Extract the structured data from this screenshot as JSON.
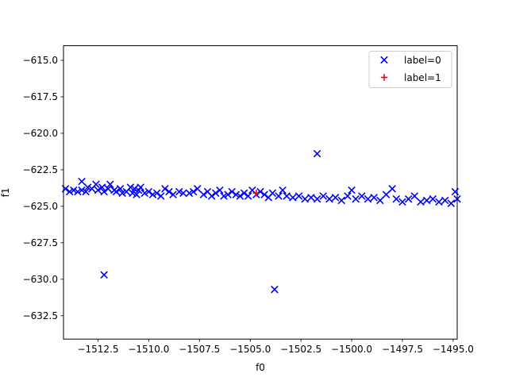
{
  "chart_data": {
    "type": "scatter",
    "xlabel": "f0",
    "ylabel": "f1",
    "xlim": [
      -1514.2,
      -1494.8
    ],
    "ylim": [
      -634.1,
      -614.0
    ],
    "xticks": [
      -1512.5,
      -1510.0,
      -1507.5,
      -1505.0,
      -1502.5,
      -1500.0,
      -1497.5,
      -1495.0
    ],
    "xtick_labels": [
      "−1512.5",
      "−1510.0",
      "−1507.5",
      "−1505.0",
      "−1502.5",
      "−1500.0",
      "−1497.5",
      "−1495.0"
    ],
    "yticks": [
      -615.0,
      -617.5,
      -620.0,
      -622.5,
      -625.0,
      -627.5,
      -630.0,
      -632.5
    ],
    "ytick_labels": [
      "−615.0",
      "−617.5",
      "−620.0",
      "−622.5",
      "−625.0",
      "−627.5",
      "−630.0",
      "−632.5"
    ],
    "grid": false,
    "legend_position": "top-right",
    "series": [
      {
        "name": "label=0",
        "marker": "x",
        "color": "#0000ff",
        "points": [
          [
            -1514.1,
            -623.8
          ],
          [
            -1513.9,
            -624.0
          ],
          [
            -1513.7,
            -623.9
          ],
          [
            -1513.5,
            -624.0
          ],
          [
            -1513.3,
            -623.9
          ],
          [
            -1513.1,
            -624.0
          ],
          [
            -1513.3,
            -623.3
          ],
          [
            -1513.0,
            -623.7
          ],
          [
            -1512.8,
            -623.8
          ],
          [
            -1512.6,
            -623.5
          ],
          [
            -1512.5,
            -623.9
          ],
          [
            -1512.3,
            -623.7
          ],
          [
            -1512.2,
            -624.0
          ],
          [
            -1512.0,
            -623.8
          ],
          [
            -1511.9,
            -623.5
          ],
          [
            -1511.7,
            -623.9
          ],
          [
            -1511.6,
            -624.0
          ],
          [
            -1511.4,
            -623.8
          ],
          [
            -1511.3,
            -624.1
          ],
          [
            -1511.1,
            -624.0
          ],
          [
            -1510.9,
            -623.7
          ],
          [
            -1510.8,
            -624.1
          ],
          [
            -1510.7,
            -623.8
          ],
          [
            -1510.6,
            -624.2
          ],
          [
            -1510.5,
            -623.9
          ],
          [
            -1510.4,
            -623.7
          ],
          [
            -1510.2,
            -624.1
          ],
          [
            -1510.0,
            -624.0
          ],
          [
            -1509.8,
            -624.2
          ],
          [
            -1509.6,
            -624.1
          ],
          [
            -1509.4,
            -624.3
          ],
          [
            -1509.2,
            -623.8
          ],
          [
            -1509.0,
            -624.0
          ],
          [
            -1508.8,
            -624.2
          ],
          [
            -1508.5,
            -624.0
          ],
          [
            -1508.3,
            -624.1
          ],
          [
            -1508.0,
            -624.1
          ],
          [
            -1507.8,
            -624.0
          ],
          [
            -1507.6,
            -623.8
          ],
          [
            -1507.3,
            -624.2
          ],
          [
            -1507.1,
            -624.0
          ],
          [
            -1506.9,
            -624.3
          ],
          [
            -1506.7,
            -624.1
          ],
          [
            -1506.5,
            -623.9
          ],
          [
            -1506.3,
            -624.3
          ],
          [
            -1506.1,
            -624.2
          ],
          [
            -1505.9,
            -624.0
          ],
          [
            -1505.7,
            -624.2
          ],
          [
            -1505.5,
            -624.3
          ],
          [
            -1505.3,
            -624.1
          ],
          [
            -1505.1,
            -624.3
          ],
          [
            -1504.9,
            -623.9
          ],
          [
            -1504.7,
            -624.2
          ],
          [
            -1504.5,
            -624.0
          ],
          [
            -1504.3,
            -624.2
          ],
          [
            -1504.1,
            -624.4
          ],
          [
            -1503.9,
            -624.1
          ],
          [
            -1503.6,
            -624.3
          ],
          [
            -1503.4,
            -623.9
          ],
          [
            -1503.2,
            -624.3
          ],
          [
            -1502.9,
            -624.4
          ],
          [
            -1502.6,
            -624.3
          ],
          [
            -1502.3,
            -624.5
          ],
          [
            -1502.0,
            -624.4
          ],
          [
            -1501.7,
            -624.5
          ],
          [
            -1501.4,
            -624.3
          ],
          [
            -1501.1,
            -624.5
          ],
          [
            -1500.8,
            -624.4
          ],
          [
            -1500.5,
            -624.6
          ],
          [
            -1500.2,
            -624.3
          ],
          [
            -1500.0,
            -623.9
          ],
          [
            -1499.8,
            -624.5
          ],
          [
            -1499.5,
            -624.3
          ],
          [
            -1499.2,
            -624.5
          ],
          [
            -1498.9,
            -624.4
          ],
          [
            -1498.6,
            -624.6
          ],
          [
            -1498.3,
            -624.2
          ],
          [
            -1498.0,
            -623.8
          ],
          [
            -1497.8,
            -624.5
          ],
          [
            -1497.5,
            -624.7
          ],
          [
            -1497.2,
            -624.5
          ],
          [
            -1496.9,
            -624.3
          ],
          [
            -1496.6,
            -624.7
          ],
          [
            -1496.3,
            -624.6
          ],
          [
            -1496.0,
            -624.5
          ],
          [
            -1495.7,
            -624.7
          ],
          [
            -1495.4,
            -624.6
          ],
          [
            -1495.1,
            -624.8
          ],
          [
            -1494.9,
            -624.0
          ],
          [
            -1494.8,
            -624.5
          ],
          [
            -1501.7,
            -621.4
          ],
          [
            -1512.2,
            -629.7
          ],
          [
            -1503.8,
            -630.7
          ]
        ]
      },
      {
        "name": "label=1",
        "marker": "+",
        "color": "#ff0000",
        "points": [
          [
            -1504.7,
            -624.1
          ]
        ]
      }
    ]
  }
}
